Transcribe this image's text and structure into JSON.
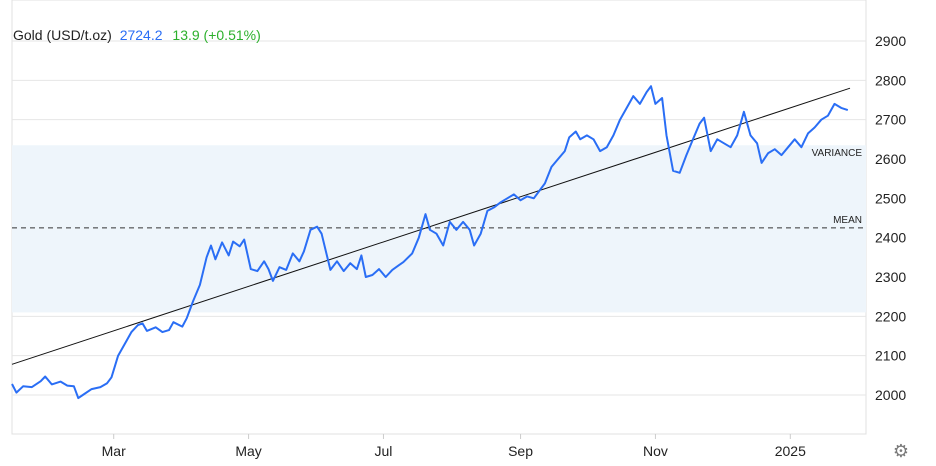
{
  "legend": {
    "instrument": "Gold (USD/t.oz)",
    "last": "2724.2",
    "change": "13.9 (+0.51%)"
  },
  "icons": {
    "settings": "gear-icon"
  },
  "colors": {
    "line": "#2a6ef5",
    "change_positive": "#2cb02c",
    "band_fill": "#eef5fb",
    "grid": "#e6e6e6",
    "trend": "#111111"
  },
  "chart_data": {
    "type": "line",
    "title": "",
    "xlabel": "",
    "ylabel": "",
    "x_ticks": [
      {
        "label": "Mar",
        "date": "2024-03-01"
      },
      {
        "label": "May",
        "date": "2024-05-01"
      },
      {
        "label": "Jul",
        "date": "2024-07-01"
      },
      {
        "label": "Sep",
        "date": "2024-09-01"
      },
      {
        "label": "Nov",
        "date": "2024-11-01"
      },
      {
        "label": "2025",
        "date": "2025-01-01"
      }
    ],
    "y_ticks": [
      2000,
      2100,
      2200,
      2300,
      2400,
      2500,
      2600,
      2700,
      2800,
      2900
    ],
    "xlim": [
      "2024-01-15",
      "2025-01-28"
    ],
    "ylim": [
      1900,
      2950
    ],
    "grid": true,
    "y_axis_position": "right",
    "series": [
      {
        "values": [
          {
            "x": "2024-01-15",
            "y": 2028
          },
          {
            "x": "2024-01-17",
            "y": 2006
          },
          {
            "x": "2024-01-20",
            "y": 2022
          },
          {
            "x": "2024-01-24",
            "y": 2020
          },
          {
            "x": "2024-01-28",
            "y": 2035
          },
          {
            "x": "2024-01-30",
            "y": 2047
          },
          {
            "x": "2024-02-02",
            "y": 2027
          },
          {
            "x": "2024-02-06",
            "y": 2034
          },
          {
            "x": "2024-02-09",
            "y": 2024
          },
          {
            "x": "2024-02-12",
            "y": 2022
          },
          {
            "x": "2024-02-14",
            "y": 1992
          },
          {
            "x": "2024-02-16",
            "y": 2000
          },
          {
            "x": "2024-02-20",
            "y": 2015
          },
          {
            "x": "2024-02-24",
            "y": 2020
          },
          {
            "x": "2024-02-27",
            "y": 2030
          },
          {
            "x": "2024-02-29",
            "y": 2045
          },
          {
            "x": "2024-03-03",
            "y": 2100
          },
          {
            "x": "2024-03-06",
            "y": 2130
          },
          {
            "x": "2024-03-09",
            "y": 2160
          },
          {
            "x": "2024-03-12",
            "y": 2178
          },
          {
            "x": "2024-03-14",
            "y": 2182
          },
          {
            "x": "2024-03-16",
            "y": 2163
          },
          {
            "x": "2024-03-20",
            "y": 2172
          },
          {
            "x": "2024-03-23",
            "y": 2160
          },
          {
            "x": "2024-03-26",
            "y": 2165
          },
          {
            "x": "2024-03-28",
            "y": 2185
          },
          {
            "x": "2024-04-01",
            "y": 2174
          },
          {
            "x": "2024-04-03",
            "y": 2195
          },
          {
            "x": "2024-04-06",
            "y": 2240
          },
          {
            "x": "2024-04-09",
            "y": 2280
          },
          {
            "x": "2024-04-12",
            "y": 2350
          },
          {
            "x": "2024-04-14",
            "y": 2380
          },
          {
            "x": "2024-04-16",
            "y": 2345
          },
          {
            "x": "2024-04-19",
            "y": 2388
          },
          {
            "x": "2024-04-22",
            "y": 2355
          },
          {
            "x": "2024-04-24",
            "y": 2390
          },
          {
            "x": "2024-04-27",
            "y": 2378
          },
          {
            "x": "2024-04-29",
            "y": 2395
          },
          {
            "x": "2024-05-02",
            "y": 2320
          },
          {
            "x": "2024-05-05",
            "y": 2315
          },
          {
            "x": "2024-05-08",
            "y": 2340
          },
          {
            "x": "2024-05-10",
            "y": 2320
          },
          {
            "x": "2024-05-12",
            "y": 2290
          },
          {
            "x": "2024-05-15",
            "y": 2325
          },
          {
            "x": "2024-05-18",
            "y": 2318
          },
          {
            "x": "2024-05-21",
            "y": 2360
          },
          {
            "x": "2024-05-24",
            "y": 2340
          },
          {
            "x": "2024-05-26",
            "y": 2365
          },
          {
            "x": "2024-05-29",
            "y": 2420
          },
          {
            "x": "2024-06-01",
            "y": 2428
          },
          {
            "x": "2024-06-03",
            "y": 2410
          },
          {
            "x": "2024-06-07",
            "y": 2318
          },
          {
            "x": "2024-06-10",
            "y": 2340
          },
          {
            "x": "2024-06-13",
            "y": 2315
          },
          {
            "x": "2024-06-16",
            "y": 2335
          },
          {
            "x": "2024-06-19",
            "y": 2320
          },
          {
            "x": "2024-06-21",
            "y": 2355
          },
          {
            "x": "2024-06-23",
            "y": 2300
          },
          {
            "x": "2024-06-26",
            "y": 2305
          },
          {
            "x": "2024-06-29",
            "y": 2320
          },
          {
            "x": "2024-07-02",
            "y": 2300
          },
          {
            "x": "2024-07-05",
            "y": 2318
          },
          {
            "x": "2024-07-08",
            "y": 2330
          },
          {
            "x": "2024-07-10",
            "y": 2338
          },
          {
            "x": "2024-07-14",
            "y": 2360
          },
          {
            "x": "2024-07-17",
            "y": 2400
          },
          {
            "x": "2024-07-20",
            "y": 2460
          },
          {
            "x": "2024-07-22",
            "y": 2420
          },
          {
            "x": "2024-07-25",
            "y": 2410
          },
          {
            "x": "2024-07-28",
            "y": 2380
          },
          {
            "x": "2024-07-31",
            "y": 2440
          },
          {
            "x": "2024-08-03",
            "y": 2420
          },
          {
            "x": "2024-08-06",
            "y": 2440
          },
          {
            "x": "2024-08-09",
            "y": 2420
          },
          {
            "x": "2024-08-11",
            "y": 2380
          },
          {
            "x": "2024-08-14",
            "y": 2410
          },
          {
            "x": "2024-08-17",
            "y": 2468
          },
          {
            "x": "2024-08-20",
            "y": 2477
          },
          {
            "x": "2024-08-23",
            "y": 2490
          },
          {
            "x": "2024-08-26",
            "y": 2500
          },
          {
            "x": "2024-08-29",
            "y": 2510
          },
          {
            "x": "2024-09-01",
            "y": 2495
          },
          {
            "x": "2024-09-04",
            "y": 2505
          },
          {
            "x": "2024-09-07",
            "y": 2500
          },
          {
            "x": "2024-09-09",
            "y": 2515
          },
          {
            "x": "2024-09-12",
            "y": 2538
          },
          {
            "x": "2024-09-15",
            "y": 2580
          },
          {
            "x": "2024-09-18",
            "y": 2600
          },
          {
            "x": "2024-09-21",
            "y": 2620
          },
          {
            "x": "2024-09-23",
            "y": 2655
          },
          {
            "x": "2024-09-26",
            "y": 2670
          },
          {
            "x": "2024-09-28",
            "y": 2650
          },
          {
            "x": "2024-10-01",
            "y": 2660
          },
          {
            "x": "2024-10-04",
            "y": 2650
          },
          {
            "x": "2024-10-07",
            "y": 2620
          },
          {
            "x": "2024-10-10",
            "y": 2630
          },
          {
            "x": "2024-10-13",
            "y": 2660
          },
          {
            "x": "2024-10-16",
            "y": 2700
          },
          {
            "x": "2024-10-19",
            "y": 2730
          },
          {
            "x": "2024-10-22",
            "y": 2760
          },
          {
            "x": "2024-10-25",
            "y": 2740
          },
          {
            "x": "2024-10-28",
            "y": 2770
          },
          {
            "x": "2024-10-30",
            "y": 2785
          },
          {
            "x": "2024-11-01",
            "y": 2740
          },
          {
            "x": "2024-11-04",
            "y": 2755
          },
          {
            "x": "2024-11-06",
            "y": 2660
          },
          {
            "x": "2024-11-09",
            "y": 2570
          },
          {
            "x": "2024-11-12",
            "y": 2565
          },
          {
            "x": "2024-11-15",
            "y": 2610
          },
          {
            "x": "2024-11-18",
            "y": 2650
          },
          {
            "x": "2024-11-21",
            "y": 2690
          },
          {
            "x": "2024-11-23",
            "y": 2705
          },
          {
            "x": "2024-11-26",
            "y": 2620
          },
          {
            "x": "2024-11-29",
            "y": 2650
          },
          {
            "x": "2024-12-02",
            "y": 2640
          },
          {
            "x": "2024-12-05",
            "y": 2630
          },
          {
            "x": "2024-12-08",
            "y": 2660
          },
          {
            "x": "2024-12-11",
            "y": 2720
          },
          {
            "x": "2024-12-14",
            "y": 2660
          },
          {
            "x": "2024-12-17",
            "y": 2640
          },
          {
            "x": "2024-12-19",
            "y": 2590
          },
          {
            "x": "2024-12-22",
            "y": 2615
          },
          {
            "x": "2024-12-25",
            "y": 2625
          },
          {
            "x": "2024-12-28",
            "y": 2610
          },
          {
            "x": "2024-12-31",
            "y": 2630
          },
          {
            "x": "2025-01-03",
            "y": 2650
          },
          {
            "x": "2025-01-06",
            "y": 2630
          },
          {
            "x": "2025-01-09",
            "y": 2665
          },
          {
            "x": "2025-01-12",
            "y": 2680
          },
          {
            "x": "2025-01-15",
            "y": 2700
          },
          {
            "x": "2025-01-18",
            "y": 2710
          },
          {
            "x": "2025-01-21",
            "y": 2740
          },
          {
            "x": "2025-01-24",
            "y": 2730
          },
          {
            "x": "2025-01-27",
            "y": 2724.2
          }
        ]
      }
    ],
    "trendline": {
      "from": {
        "x": "2024-01-15",
        "y": 2078
      },
      "to": {
        "x": "2025-01-28",
        "y": 2780
      }
    },
    "mean": {
      "label": "MEAN",
      "y": 2425
    },
    "variance_band": {
      "label": "VARIANCE",
      "y_low": 2210,
      "y_high": 2635
    }
  }
}
